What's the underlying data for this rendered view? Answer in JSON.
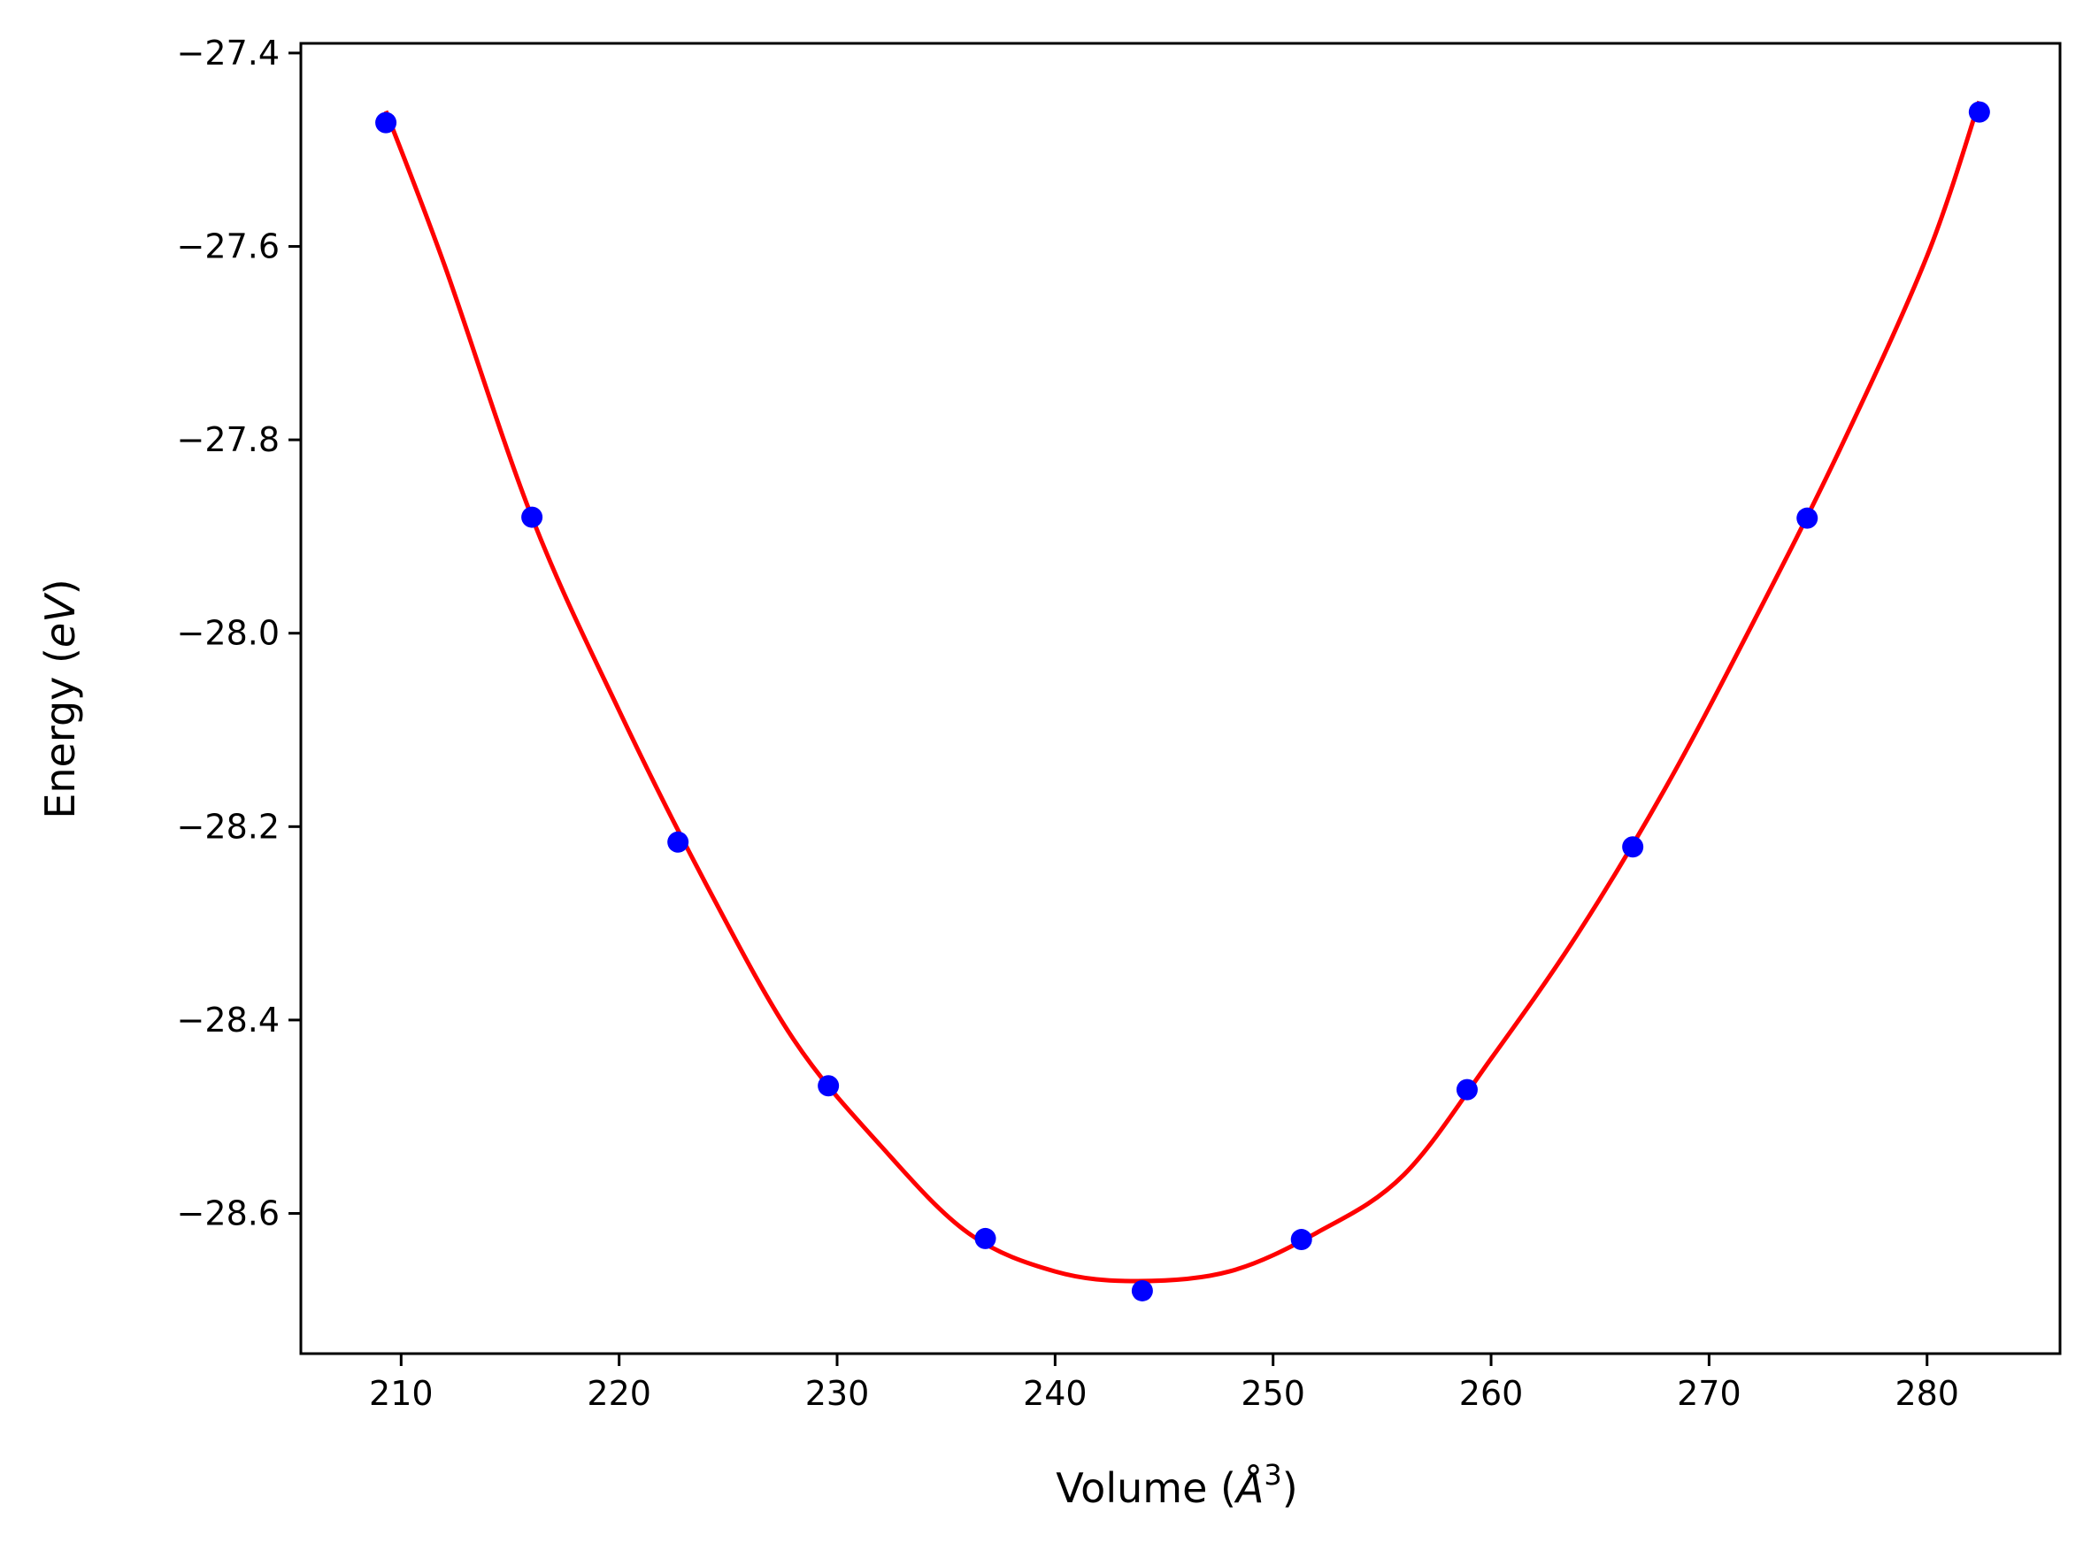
{
  "chart_data": {
    "type": "scatter",
    "xlabel": {
      "prefix": "Volume (",
      "symbol": "Å",
      "sup": "3",
      "suffix": ")"
    },
    "ylabel": {
      "prefix": "Energy (",
      "italic": "eV",
      "suffix": ")"
    },
    "xlim": [
      205.4,
      286.1
    ],
    "ylim": [
      -28.745,
      -27.39
    ],
    "xticks": [
      210,
      220,
      230,
      240,
      250,
      260,
      270,
      280
    ],
    "xtick_labels": [
      "210",
      "220",
      "230",
      "240",
      "250",
      "260",
      "270",
      "280"
    ],
    "yticks": [
      -27.4,
      -27.6,
      -27.8,
      -28.0,
      -28.2,
      -28.4,
      -28.6
    ],
    "ytick_labels": [
      "−27.4",
      "−27.6",
      "−27.8",
      "−28.0",
      "−28.2",
      "−28.4",
      "−28.6"
    ],
    "grid": false,
    "series": [
      {
        "kind": "points",
        "color": "#0000ff",
        "x": [
          209.3,
          216.0,
          222.7,
          229.6,
          236.8,
          244.0,
          251.3,
          258.9,
          266.5,
          274.5,
          282.4
        ],
        "y": [
          -27.472,
          -27.88,
          -28.216,
          -28.468,
          -28.626,
          -28.68,
          -28.627,
          -28.472,
          -28.221,
          -27.881,
          -27.461
        ]
      },
      {
        "kind": "fit-line",
        "color": "#ff0000",
        "x": [
          209.3,
          212.0,
          216.0,
          220.0,
          224.0,
          228.0,
          232.0,
          236.0,
          240.0,
          243.8,
          248.0,
          252.0,
          256.0,
          260.0,
          264.0,
          268.0,
          272.0,
          276.0,
          280.0,
          282.4
        ],
        "y": [
          -27.46,
          -27.62,
          -27.88,
          -28.08,
          -28.26,
          -28.42,
          -28.53,
          -28.62,
          -28.66,
          -28.67,
          -28.66,
          -28.62,
          -28.56,
          -28.44,
          -28.31,
          -28.16,
          -27.99,
          -27.81,
          -27.61,
          -27.45
        ]
      }
    ]
  }
}
